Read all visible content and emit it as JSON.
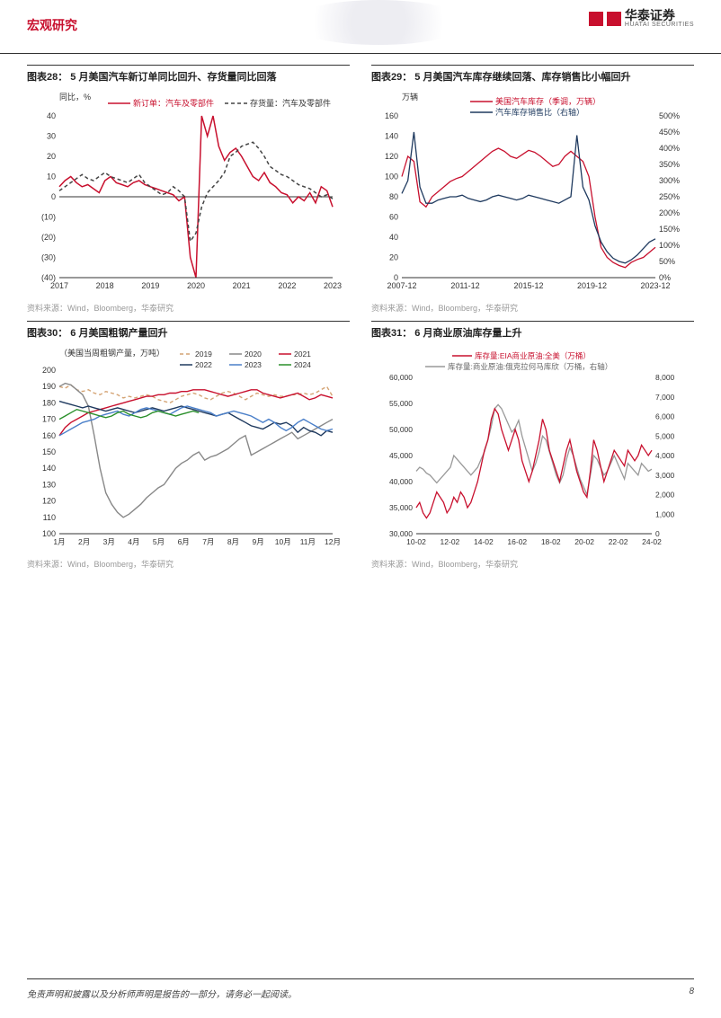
{
  "header": {
    "section": "宏观研究",
    "company_cn": "华泰证券",
    "company_en": "HUATAI SECURITIES"
  },
  "footer": {
    "disclaimer": "免责声明和披露以及分析师声明是报告的一部分，请务必一起阅读。",
    "page": "8"
  },
  "source": "资料来源：Wind，Bloomberg，华泰研究",
  "chart28": {
    "title": "图表28： 5 月美国汽车新订单同比回升、存货量同比回落",
    "unit": "同比，%",
    "legend": [
      "新订单：汽车及零部件",
      "存货量：汽车及零部件"
    ],
    "colors": [
      "#c8102e",
      "#444"
    ],
    "series2_dash": "4,3",
    "x_labels": [
      "2017",
      "2018",
      "2019",
      "2020",
      "2021",
      "2022",
      "2023"
    ],
    "ylim": [
      -40,
      40
    ],
    "ytick_step": 10,
    "series1": [
      5,
      8,
      10,
      7,
      5,
      6,
      4,
      2,
      8,
      10,
      7,
      6,
      5,
      7,
      8,
      6,
      5,
      4,
      3,
      2,
      1,
      -2,
      0,
      -30,
      -50,
      40,
      30,
      50,
      25,
      18,
      22,
      24,
      20,
      15,
      10,
      8,
      12,
      7,
      5,
      2,
      1,
      -3,
      0,
      -2,
      2,
      -3,
      5,
      3,
      -5
    ],
    "series2": [
      3,
      5,
      7,
      9,
      11,
      9,
      8,
      10,
      12,
      10,
      9,
      8,
      7,
      9,
      11,
      7,
      5,
      3,
      1,
      2,
      5,
      3,
      0,
      -22,
      -18,
      -5,
      2,
      5,
      8,
      12,
      20,
      22,
      25,
      26,
      27,
      24,
      20,
      15,
      13,
      11,
      10,
      8,
      6,
      5,
      4,
      2,
      0,
      1,
      -1
    ],
    "line_width": 1.5
  },
  "chart29": {
    "title": "图表29： 5 月美国汽车库存继续回落、库存销售比小幅回升",
    "unit": "万辆",
    "legend": [
      "美国汽车库存（季调，万辆）",
      "汽车库存销售比（右轴）"
    ],
    "colors": [
      "#c8102e",
      "#1f3a5f"
    ],
    "x_labels": [
      "2007-12",
      "2011-12",
      "2015-12",
      "2019-12",
      "2023-12"
    ],
    "ylim_left": [
      0,
      160
    ],
    "ytick_left": 20,
    "ylim_right": [
      0,
      500
    ],
    "ytick_right": 50,
    "right_suffix": "%",
    "series1": [
      100,
      120,
      115,
      75,
      70,
      80,
      85,
      90,
      95,
      98,
      100,
      105,
      110,
      115,
      120,
      125,
      128,
      125,
      120,
      118,
      122,
      126,
      124,
      120,
      115,
      110,
      112,
      120,
      125,
      120,
      115,
      100,
      60,
      30,
      20,
      15,
      12,
      10,
      15,
      18,
      20,
      25,
      30
    ],
    "series2": [
      260,
      300,
      450,
      280,
      230,
      230,
      240,
      245,
      250,
      250,
      255,
      245,
      240,
      235,
      240,
      250,
      255,
      250,
      245,
      240,
      245,
      255,
      250,
      245,
      240,
      235,
      230,
      240,
      250,
      440,
      280,
      240,
      160,
      110,
      80,
      60,
      50,
      45,
      55,
      70,
      90,
      110,
      120
    ],
    "line_width": 1.3
  },
  "chart30": {
    "title": "图表30： 6 月美国粗钢产量回升",
    "unit": "（美国当周粗钢产量，万吨）",
    "legend": [
      "2019",
      "2020",
      "2021",
      "2022",
      "2023",
      "2024"
    ],
    "colors": [
      "#d4a373",
      "#888",
      "#c8102e",
      "#1f3a5f",
      "#4a7fc9",
      "#2a8f2a"
    ],
    "dashes": [
      "4,3",
      "",
      "",
      "",
      "",
      ""
    ],
    "x_labels": [
      "1月",
      "2月",
      "3月",
      "4月",
      "5月",
      "6月",
      "7月",
      "8月",
      "9月",
      "10月",
      "11月",
      "12月"
    ],
    "ylim": [
      100,
      200
    ],
    "ytick_step": 10,
    "series": [
      [
        190,
        189,
        191,
        188,
        187,
        188,
        186,
        185,
        187,
        186,
        185,
        183,
        184,
        183,
        184,
        185,
        184,
        182,
        181,
        180,
        182,
        184,
        185,
        186,
        185,
        183,
        182,
        184,
        186,
        187,
        186,
        184,
        182,
        184,
        186,
        185,
        184,
        185,
        184,
        184,
        185,
        185,
        186,
        185,
        186,
        188,
        190,
        184
      ],
      [
        190,
        192,
        191,
        188,
        185,
        178,
        160,
        140,
        125,
        118,
        113,
        110,
        112,
        115,
        118,
        122,
        125,
        128,
        130,
        135,
        140,
        143,
        145,
        148,
        150,
        145,
        147,
        148,
        150,
        152,
        155,
        158,
        160,
        148,
        150,
        152,
        154,
        156,
        158,
        160,
        162,
        158,
        160,
        162,
        164,
        166,
        168,
        170
      ],
      [
        160,
        165,
        168,
        170,
        172,
        174,
        175,
        176,
        177,
        178,
        179,
        180,
        181,
        182,
        183,
        184,
        184,
        185,
        185,
        186,
        186,
        187,
        187,
        188,
        188,
        188,
        187,
        186,
        185,
        184,
        185,
        186,
        187,
        188,
        188,
        186,
        185,
        184,
        183,
        184,
        185,
        186,
        184,
        182,
        183,
        185,
        184,
        183
      ],
      [
        181,
        180,
        179,
        178,
        177,
        178,
        177,
        176,
        175,
        176,
        177,
        176,
        175,
        174,
        175,
        176,
        177,
        176,
        175,
        176,
        177,
        178,
        177,
        176,
        175,
        174,
        173,
        172,
        173,
        174,
        172,
        170,
        168,
        166,
        165,
        164,
        166,
        168,
        167,
        168,
        166,
        162,
        165,
        163,
        162,
        160,
        163,
        162
      ],
      [
        160,
        162,
        164,
        166,
        168,
        169,
        170,
        172,
        173,
        174,
        175,
        173,
        172,
        174,
        176,
        177,
        176,
        175,
        174,
        173,
        175,
        177,
        178,
        177,
        176,
        175,
        174,
        172,
        173,
        174,
        175,
        174,
        173,
        172,
        170,
        168,
        170,
        168,
        165,
        163,
        165,
        168,
        170,
        168,
        166,
        164,
        163,
        164
      ],
      [
        170,
        172,
        174,
        176,
        175,
        174,
        173,
        172,
        171,
        172,
        174,
        175,
        173,
        172,
        171,
        172,
        174,
        175,
        174,
        173,
        172,
        173,
        174,
        175,
        174
      ]
    ],
    "line_width": 1.4
  },
  "chart31": {
    "title": "图表31： 6 月商业原油库存量上升",
    "legend": [
      "库存量:EIA商业原油:全美（万桶）",
      "库存量:商业原油:俄克拉何马库欣（万桶，右轴）"
    ],
    "colors": [
      "#c8102e",
      "#999"
    ],
    "x_labels": [
      "10-02",
      "12-02",
      "14-02",
      "16-02",
      "18-02",
      "20-02",
      "22-02",
      "24-02"
    ],
    "ylim_left": [
      30000,
      60000
    ],
    "ytick_left": 5000,
    "ylim_right": [
      0,
      8000
    ],
    "ytick_right": 1000,
    "series1": [
      35000,
      36000,
      34000,
      33000,
      34000,
      36000,
      38000,
      37000,
      36000,
      34000,
      35000,
      37000,
      36000,
      38000,
      37000,
      35000,
      36000,
      38000,
      40000,
      43000,
      46000,
      48000,
      52000,
      54000,
      53000,
      50000,
      48000,
      46000,
      48000,
      50000,
      48000,
      44000,
      42000,
      40000,
      42000,
      45000,
      48000,
      52000,
      50000,
      46000,
      44000,
      42000,
      40000,
      43000,
      46000,
      48000,
      45000,
      42000,
      40000,
      38000,
      37000,
      42000,
      48000,
      46000,
      43000,
      40000,
      42000,
      44000,
      46000,
      45000,
      44000,
      43000,
      46000,
      45000,
      44000,
      45000,
      47000,
      46000,
      45000,
      46000
    ],
    "series2": [
      3200,
      3400,
      3300,
      3100,
      3000,
      2800,
      2600,
      2800,
      3000,
      3200,
      3400,
      4000,
      3800,
      3600,
      3400,
      3200,
      3000,
      3200,
      3400,
      3800,
      4200,
      4800,
      5500,
      6400,
      6600,
      6400,
      6000,
      5600,
      5200,
      5400,
      5800,
      5000,
      4400,
      3800,
      3200,
      3600,
      4200,
      5000,
      4800,
      4200,
      3600,
      3000,
      2600,
      3000,
      3800,
      4400,
      4000,
      3400,
      2800,
      2400,
      2000,
      3000,
      4000,
      3800,
      3400,
      3000,
      3200,
      3600,
      4000,
      3600,
      3200,
      2800,
      3600,
      3400,
      3200,
      3000,
      3600,
      3400,
      3200,
      3300
    ],
    "line_width": 1.3
  }
}
